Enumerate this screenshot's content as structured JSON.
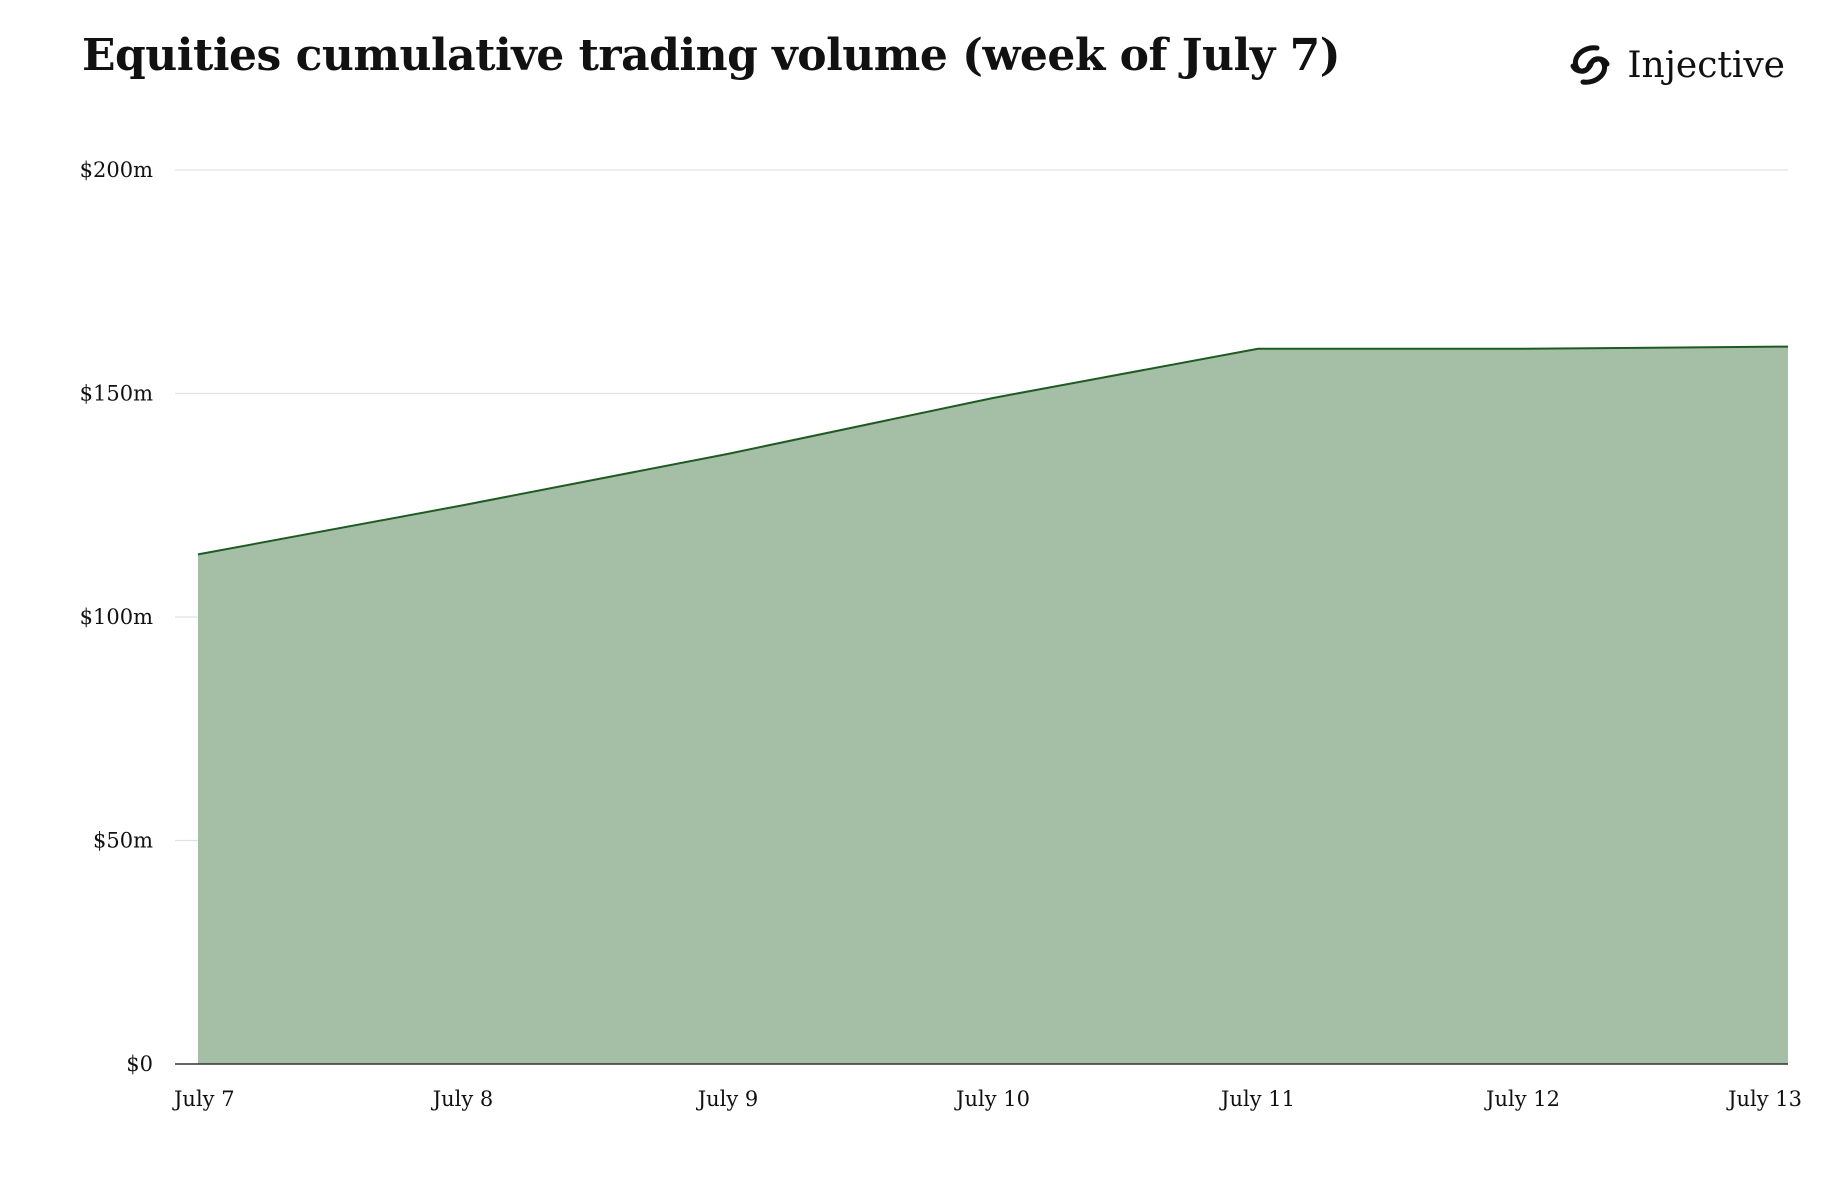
{
  "title": "Equities cumulative trading volume (week of July 7)",
  "brand": {
    "name": "Injective",
    "logo_icon": "injective-logo-icon"
  },
  "colors": {
    "area_fill": "#a5bea6",
    "line": "#1f5a24",
    "grid": "#e2e2e2",
    "axis": "#333333"
  },
  "chart_data": {
    "type": "area",
    "title": "Equities cumulative trading volume (week of July 7)",
    "xlabel": "",
    "ylabel": "",
    "x": [
      "July 7",
      "July 8",
      "July 9",
      "July 10",
      "July 11",
      "July 12",
      "July 13"
    ],
    "series": [
      {
        "values": [
          114,
          125,
          136.5,
          149,
          160,
          160,
          160.5
        ]
      }
    ],
    "ylim": [
      0,
      200
    ],
    "y_ticks": [
      0,
      50,
      100,
      150,
      200
    ],
    "y_tick_labels": [
      "$0",
      "$50m",
      "$100m",
      "$150m",
      "$200m"
    ],
    "grid": true,
    "legend": "none"
  }
}
